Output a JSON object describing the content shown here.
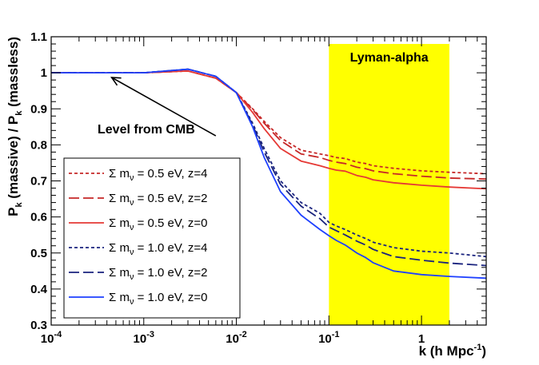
{
  "chart_data": {
    "type": "line",
    "title": "",
    "xlabel": "k (h Mpc",
    "xlabel_sup": "-1",
    "xlabel_close": ")",
    "ylabel_pre": "P",
    "ylabel_sub": "k",
    "ylabel_mid": " (massive) / P",
    "ylabel_sub2": "k",
    "ylabel_post": " (massless)",
    "x_scale": "log",
    "xlim": [
      0.0001,
      5
    ],
    "ylim": [
      0.3,
      1.1
    ],
    "x_ticks": [
      {
        "value": 0.0001,
        "base": "10",
        "exp": "-4"
      },
      {
        "value": 0.001,
        "base": "10",
        "exp": "-3"
      },
      {
        "value": 0.01,
        "base": "10",
        "exp": "-2"
      },
      {
        "value": 0.1,
        "base": "10",
        "exp": "-1"
      },
      {
        "value": 1,
        "base": "1",
        "exp": ""
      }
    ],
    "y_ticks": [
      {
        "value": 0.3,
        "label": "0.3"
      },
      {
        "value": 0.4,
        "label": "0.4"
      },
      {
        "value": 0.5,
        "label": "0.5"
      },
      {
        "value": 0.6,
        "label": "0.6"
      },
      {
        "value": 0.7,
        "label": "0.7"
      },
      {
        "value": 0.8,
        "label": "0.8"
      },
      {
        "value": 0.9,
        "label": "0.9"
      },
      {
        "value": 1.0,
        "label": "1"
      },
      {
        "value": 1.1,
        "label": "1.1"
      }
    ],
    "shaded_region": {
      "label": "Lyman-alpha",
      "x_range": [
        0.1,
        2.0
      ],
      "y_range": [
        0.3,
        1.08
      ],
      "color": "#ffff00"
    },
    "annotation": {
      "text": "Level from CMB",
      "arrow_from": [
        0.006,
        0.825
      ],
      "arrow_to": [
        0.00045,
        0.987
      ]
    },
    "legend": {
      "position": "bottom-left",
      "entries": [
        {
          "prefix": "Σ m",
          "sub": "ν",
          "suffix": " = 0.5 eV, z=4",
          "series": 0
        },
        {
          "prefix": "Σ m",
          "sub": "ν",
          "suffix": " = 0.5 eV, z=2",
          "series": 1
        },
        {
          "prefix": "Σ m",
          "sub": "ν",
          "suffix": " = 0.5 eV, z=0",
          "series": 2
        },
        {
          "prefix": "Σ m",
          "sub": "ν",
          "suffix": " = 1.0 eV, z=4",
          "series": 3
        },
        {
          "prefix": "Σ m",
          "sub": "ν",
          "suffix": " = 1.0 eV, z=2",
          "series": 4
        },
        {
          "prefix": "Σ m",
          "sub": "ν",
          "suffix": " = 1.0 eV, z=0",
          "series": 5
        }
      ]
    },
    "series": [
      {
        "name": "Σ mν = 0.5 eV, z=4",
        "color": "#c62828",
        "dash": "short",
        "x": [
          0.0001,
          0.0003,
          0.001,
          0.003,
          0.006,
          0.01,
          0.015,
          0.02,
          0.03,
          0.05,
          0.08,
          0.1,
          0.12,
          0.15,
          0.2,
          0.25,
          0.3,
          0.5,
          1,
          2,
          5
        ],
        "y": [
          1.0,
          1.0,
          1.0,
          1.005,
          0.985,
          0.945,
          0.9,
          0.865,
          0.82,
          0.785,
          0.775,
          0.77,
          0.765,
          0.762,
          0.752,
          0.748,
          0.742,
          0.735,
          0.728,
          0.724,
          0.72
        ]
      },
      {
        "name": "Σ mν = 0.5 eV, z=2",
        "color": "#c62828",
        "dash": "long",
        "x": [
          0.0001,
          0.0003,
          0.001,
          0.003,
          0.006,
          0.01,
          0.015,
          0.02,
          0.03,
          0.05,
          0.08,
          0.1,
          0.12,
          0.15,
          0.2,
          0.25,
          0.3,
          0.5,
          1,
          2,
          5
        ],
        "y": [
          1.0,
          1.0,
          1.0,
          1.005,
          0.985,
          0.945,
          0.898,
          0.86,
          0.812,
          0.775,
          0.765,
          0.757,
          0.752,
          0.748,
          0.738,
          0.734,
          0.728,
          0.72,
          0.713,
          0.708,
          0.705
        ]
      },
      {
        "name": "Σ mν = 0.5 eV, z=0",
        "color": "#e53935",
        "dash": "solid",
        "x": [
          0.0001,
          0.0003,
          0.001,
          0.003,
          0.006,
          0.01,
          0.015,
          0.02,
          0.03,
          0.05,
          0.08,
          0.1,
          0.12,
          0.15,
          0.2,
          0.25,
          0.3,
          0.5,
          1,
          2,
          5
        ],
        "y": [
          1.0,
          1.0,
          1.0,
          1.005,
          0.985,
          0.945,
          0.89,
          0.845,
          0.79,
          0.755,
          0.742,
          0.735,
          0.73,
          0.727,
          0.715,
          0.71,
          0.703,
          0.695,
          0.688,
          0.683,
          0.678
        ]
      },
      {
        "name": "Σ mν = 1.0 eV, z=4",
        "color": "#1a237e",
        "dash": "short",
        "x": [
          0.0001,
          0.0003,
          0.001,
          0.003,
          0.006,
          0.01,
          0.015,
          0.02,
          0.03,
          0.05,
          0.08,
          0.1,
          0.12,
          0.15,
          0.2,
          0.25,
          0.3,
          0.5,
          1,
          2,
          5
        ],
        "y": [
          1.0,
          1.0,
          1.0,
          1.01,
          0.99,
          0.945,
          0.86,
          0.79,
          0.7,
          0.64,
          0.61,
          0.585,
          0.575,
          0.565,
          0.55,
          0.54,
          0.53,
          0.515,
          0.505,
          0.5,
          0.49
        ]
      },
      {
        "name": "Σ mν = 1.0 eV, z=2",
        "color": "#1a237e",
        "dash": "long",
        "x": [
          0.0001,
          0.0003,
          0.001,
          0.003,
          0.006,
          0.01,
          0.015,
          0.02,
          0.03,
          0.05,
          0.08,
          0.1,
          0.12,
          0.15,
          0.2,
          0.25,
          0.3,
          0.5,
          1,
          2,
          5
        ],
        "y": [
          1.0,
          1.0,
          1.0,
          1.01,
          0.99,
          0.945,
          0.855,
          0.78,
          0.69,
          0.63,
          0.595,
          0.572,
          0.562,
          0.55,
          0.533,
          0.522,
          0.51,
          0.49,
          0.48,
          0.472,
          0.465
        ]
      },
      {
        "name": "Σ mν = 1.0 eV, z=0",
        "color": "#1e40ff",
        "dash": "solid",
        "x": [
          0.0001,
          0.0003,
          0.001,
          0.003,
          0.006,
          0.01,
          0.015,
          0.02,
          0.03,
          0.05,
          0.08,
          0.1,
          0.12,
          0.15,
          0.2,
          0.25,
          0.3,
          0.5,
          1,
          2,
          5
        ],
        "y": [
          1.0,
          1.0,
          1.0,
          1.01,
          0.99,
          0.945,
          0.85,
          0.765,
          0.67,
          0.605,
          0.565,
          0.548,
          0.535,
          0.522,
          0.5,
          0.487,
          0.473,
          0.45,
          0.44,
          0.435,
          0.43
        ]
      }
    ]
  }
}
